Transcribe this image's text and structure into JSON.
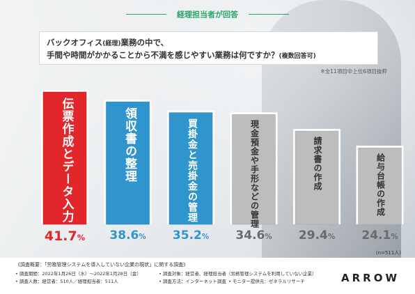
{
  "header": {
    "tag": "経理担当者が回答"
  },
  "question": {
    "line1": "バックオフィス",
    "line1_paren": "(経理)",
    "line1_rest": "業務の中で、",
    "line2": "手間や時間がかかることから不満を感じやすい業務は何ですか？",
    "line2_paren": "(複数回答可)"
  },
  "note": "※全11項目中上位6項目抜粋",
  "n_label": "(n=511人)",
  "colors": {
    "red": "#e1272b",
    "blue": "#2f95cc",
    "gray": "#bdbdbd",
    "pct_gray": "#6a6a6a",
    "green": "#2aa36a"
  },
  "chart_data": {
    "type": "bar",
    "categories": [
      "伝票作成とデータ入力",
      "領収書の整理",
      "買掛金と売掛金の管理",
      "現金預金や手形などの管理",
      "請求書の作成",
      "給与台帳の作成"
    ],
    "values": [
      41.7,
      38.6,
      35.2,
      34.6,
      29.4,
      24.1
    ],
    "value_labels": [
      "41.7",
      "38.6",
      "35.2",
      "34.6",
      "29.4",
      "24.1"
    ],
    "unit": "%",
    "ylim": [
      0,
      45
    ]
  },
  "footer": {
    "title": "《調査概要：「労務管理システムを導入していない企業の現状」に関する調査》",
    "period": "• 調査期間：2022年1月26日（水）～2022年1月28日（金）",
    "target": "• 調査対象：経営者、経理担当者（労務管理システムを利用していない企業）",
    "count": "• 調査人数：経営者：510人／経理担当者：511人",
    "method": "• 調査方法：インターネット調査",
    "provider": "• モニター提供元：ゼネラルリサーチ",
    "logo": "ARROW"
  }
}
